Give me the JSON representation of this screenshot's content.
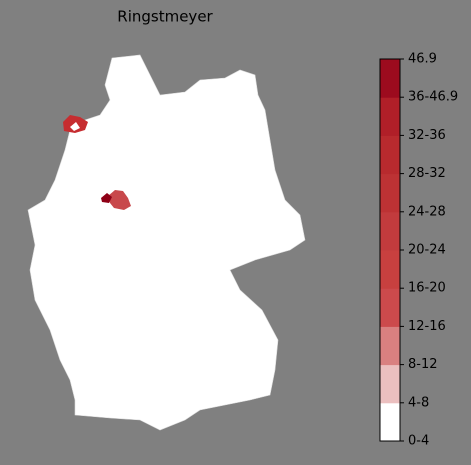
{
  "title": "Ringstmeyer",
  "colorbar": {
    "labels": [
      "0-4",
      "4-8",
      "8-12",
      "12-16",
      "16-20",
      "20-24",
      "24-28",
      "28-32",
      "32-36",
      "36-46.9",
      "46.9"
    ],
    "colors": [
      "#ffffff",
      "#ebbfbf",
      "#d98080",
      "#cc4a4c",
      "#c8403f",
      "#c23b3d",
      "#bd3234",
      "#b82a2e",
      "#b01f28",
      "#9c0b1e"
    ]
  }
}
